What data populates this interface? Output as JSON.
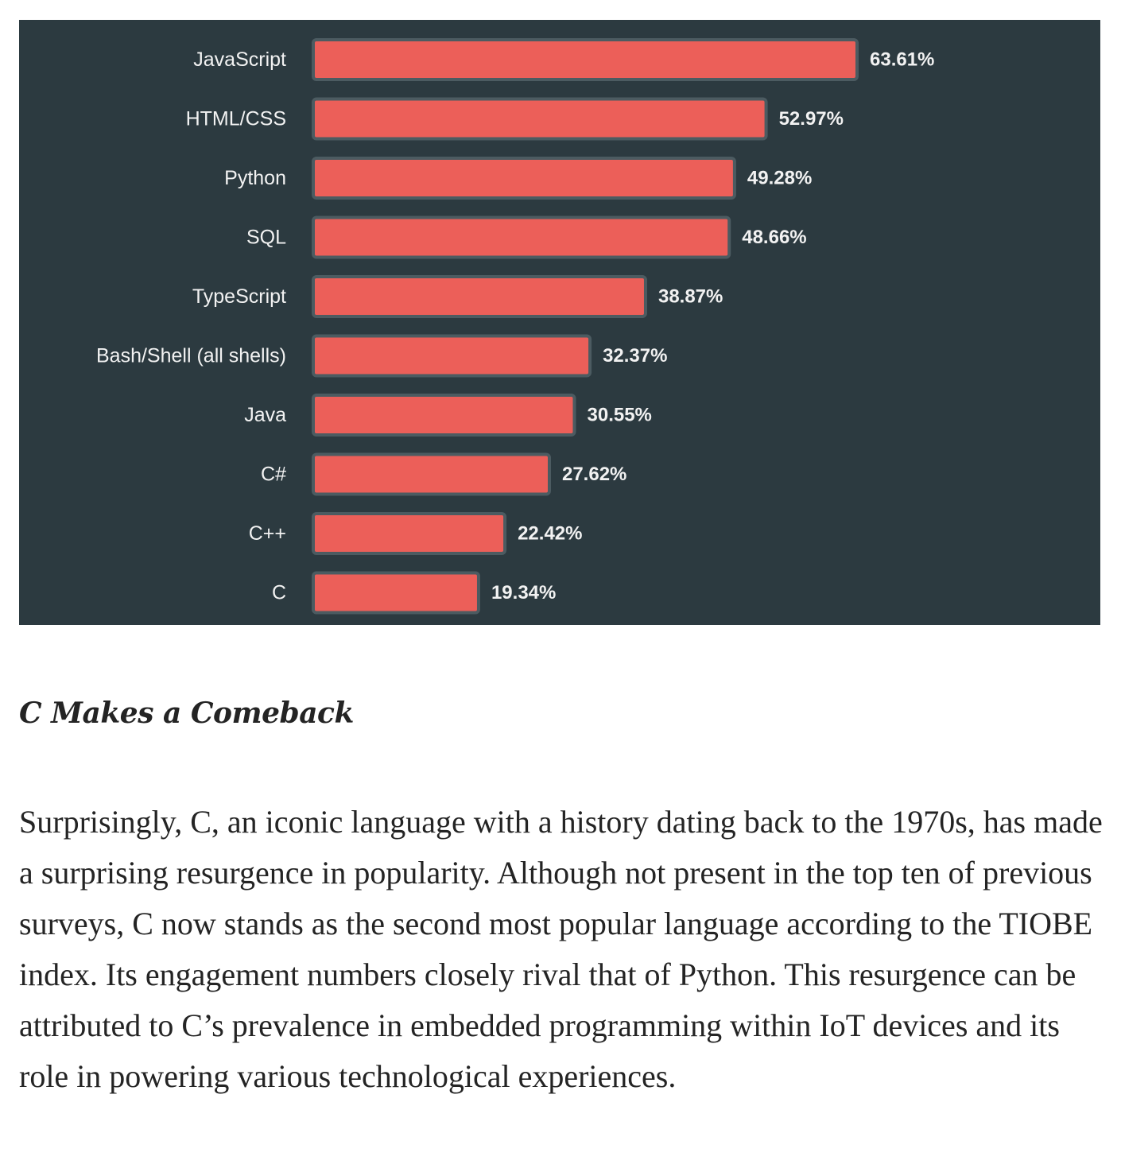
{
  "chart_data": {
    "type": "bar",
    "orientation": "horizontal",
    "categories": [
      "JavaScript",
      "HTML/CSS",
      "Python",
      "SQL",
      "TypeScript",
      "Bash/Shell (all shells)",
      "Java",
      "C#",
      "C++",
      "C"
    ],
    "values": [
      63.61,
      52.97,
      49.28,
      48.66,
      38.87,
      32.37,
      30.55,
      27.62,
      22.42,
      19.34
    ],
    "value_labels": [
      "63.61%",
      "52.97%",
      "49.28%",
      "48.66%",
      "38.87%",
      "32.37%",
      "30.55%",
      "27.62%",
      "22.42%",
      "19.34%"
    ],
    "title": "",
    "xlabel": "",
    "ylabel": "",
    "grid": false,
    "legend": "none",
    "colors": {
      "background": "#2c3a40",
      "bar": "#ec5f59",
      "bar_outline": "#4c5b61",
      "text": "#f2f2f2"
    }
  },
  "article": {
    "heading": "C Makes a Comeback",
    "paragraph": "Surprisingly, C, an iconic language with a history dating back to the 1970s, has made a surprising resurgence in popularity. Although not present in the top ten of previous surveys, C now stands as the second most popular language according to the TIOBE index. Its engagement numbers closely rival that of Python. This resurgence can be attributed to C’s prevalence in embedded programming within IoT devices and its role in powering various technological experiences."
  }
}
